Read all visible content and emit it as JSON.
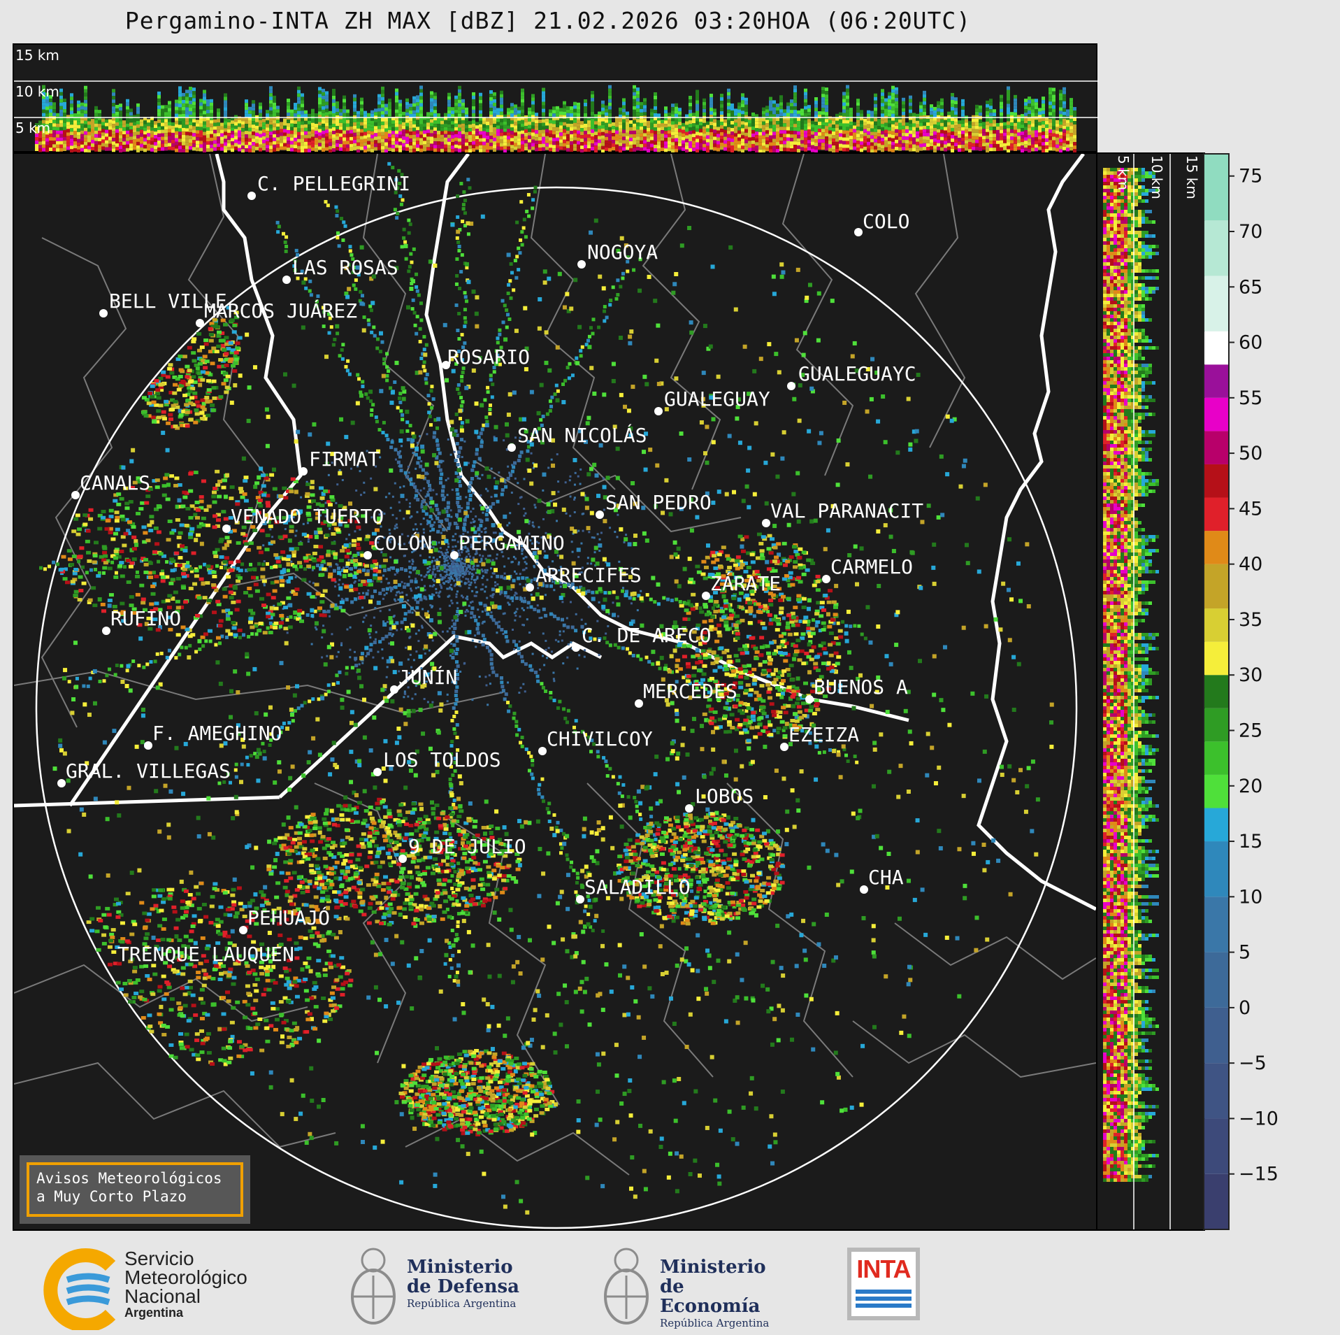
{
  "title": "Pergamino-INTA ZH MAX [dBZ] 21.02.2026 03:20HOA (06:20UTC)",
  "top_panel": {
    "height_labels": [
      "15 km",
      "10 km",
      "5 km"
    ]
  },
  "side_panel": {
    "height_labels": [
      "5 km",
      "10 km",
      "15 km"
    ]
  },
  "colorbar": {
    "unit": "dBZ",
    "ticks": [
      "75",
      "70",
      "65",
      "60",
      "55",
      "50",
      "45",
      "40",
      "35",
      "30",
      "25",
      "20",
      "15",
      "10",
      "5",
      "0",
      "−5",
      "−10",
      "−15"
    ],
    "tick_values": [
      75,
      70,
      65,
      60,
      55,
      50,
      45,
      40,
      35,
      30,
      25,
      20,
      15,
      10,
      5,
      0,
      -5,
      -10,
      -15
    ],
    "range": [
      -20,
      77
    ],
    "colors": [
      {
        "from": -20,
        "to": -15,
        "color": "#3a3f6e"
      },
      {
        "from": -15,
        "to": -10,
        "color": "#3d4a7a"
      },
      {
        "from": -10,
        "to": -5,
        "color": "#3f5484"
      },
      {
        "from": -5,
        "to": 0,
        "color": "#3f5f8f"
      },
      {
        "from": 0,
        "to": 5,
        "color": "#3d6a99"
      },
      {
        "from": 5,
        "to": 10,
        "color": "#3a77a8"
      },
      {
        "from": 10,
        "to": 15,
        "color": "#2f88bb"
      },
      {
        "from": 15,
        "to": 18,
        "color": "#27a8d8"
      },
      {
        "from": 18,
        "to": 21,
        "color": "#4fe03a"
      },
      {
        "from": 21,
        "to": 24,
        "color": "#3cc02c"
      },
      {
        "from": 24,
        "to": 27,
        "color": "#2f9c24"
      },
      {
        "from": 27,
        "to": 30,
        "color": "#237a1c"
      },
      {
        "from": 30,
        "to": 33,
        "color": "#f5ee3a"
      },
      {
        "from": 33,
        "to": 36,
        "color": "#d8cf33"
      },
      {
        "from": 36,
        "to": 40,
        "color": "#c4a428"
      },
      {
        "from": 40,
        "to": 43,
        "color": "#e08a18"
      },
      {
        "from": 43,
        "to": 46,
        "color": "#e0202a"
      },
      {
        "from": 46,
        "to": 49,
        "color": "#b51018"
      },
      {
        "from": 49,
        "to": 52,
        "color": "#b8006a"
      },
      {
        "from": 52,
        "to": 55,
        "color": "#e800c8"
      },
      {
        "from": 55,
        "to": 58,
        "color": "#9a109a"
      },
      {
        "from": 58,
        "to": 61,
        "color": "#ffffff"
      },
      {
        "from": 61,
        "to": 66,
        "color": "#d8f2e8"
      },
      {
        "from": 66,
        "to": 71,
        "color": "#b6e8d4"
      },
      {
        "from": 71,
        "to": 77,
        "color": "#90dcc0"
      }
    ]
  },
  "cities": [
    {
      "name": "C. PELLEGRINI"
    },
    {
      "name": "LAS ROSAS"
    },
    {
      "name": "NOGOYA"
    },
    {
      "name": "BELL VILLE"
    },
    {
      "name": "MARCOS JUÁREZ"
    },
    {
      "name": "ROSARIO"
    },
    {
      "name": "GUALEGUAYC"
    },
    {
      "name": "COLO"
    },
    {
      "name": "GUALEGUAY"
    },
    {
      "name": "SAN NICOLÁS"
    },
    {
      "name": "FIRMAT"
    },
    {
      "name": "CANALS"
    },
    {
      "name": "SAN PEDRO"
    },
    {
      "name": "VAL PARANACIT"
    },
    {
      "name": "VENADO TUERTO"
    },
    {
      "name": "COLÓN"
    },
    {
      "name": "PERGAMINO"
    },
    {
      "name": "CARMELO"
    },
    {
      "name": "ARRECIFES"
    },
    {
      "name": "ZÁRATE"
    },
    {
      "name": "RUFINO"
    },
    {
      "name": "C. DE ARECO"
    },
    {
      "name": "JUNÍN"
    },
    {
      "name": "BUENOS A"
    },
    {
      "name": "MERCEDES"
    },
    {
      "name": "F. AMEGHINO"
    },
    {
      "name": "EZEIZA"
    },
    {
      "name": "CHIVILCOY"
    },
    {
      "name": "GRAL. VILLEGAS"
    },
    {
      "name": "LOS TOLDOS"
    },
    {
      "name": "LOBOS"
    },
    {
      "name": "9 DE JULIO"
    },
    {
      "name": "SALADILLO"
    },
    {
      "name": "CHA"
    },
    {
      "name": "PEHUAJÓ"
    },
    {
      "name": "TRENQUE LAUQUEN"
    }
  ],
  "notice": {
    "line1": "Avisos Meteorológicos",
    "line2": "a Muy Corto Plazo"
  },
  "logos": {
    "smn": {
      "line1": "Servicio",
      "line2": "Meteorológico",
      "line3": "Nacional",
      "line4": "Argentina"
    },
    "defensa": {
      "line1": "Ministerio",
      "line2": "de Defensa",
      "line3": "República Argentina"
    },
    "economia": {
      "line1": "Ministerio",
      "line2": "de Economía",
      "line3": "República Argentina"
    },
    "inta": {
      "text": "INTA"
    }
  },
  "colors": {
    "background": "#1b1b1b",
    "outer": "#e6e6e6",
    "range_ring": "#ffffff",
    "borders": "#808080",
    "coast": "#ffffff"
  }
}
